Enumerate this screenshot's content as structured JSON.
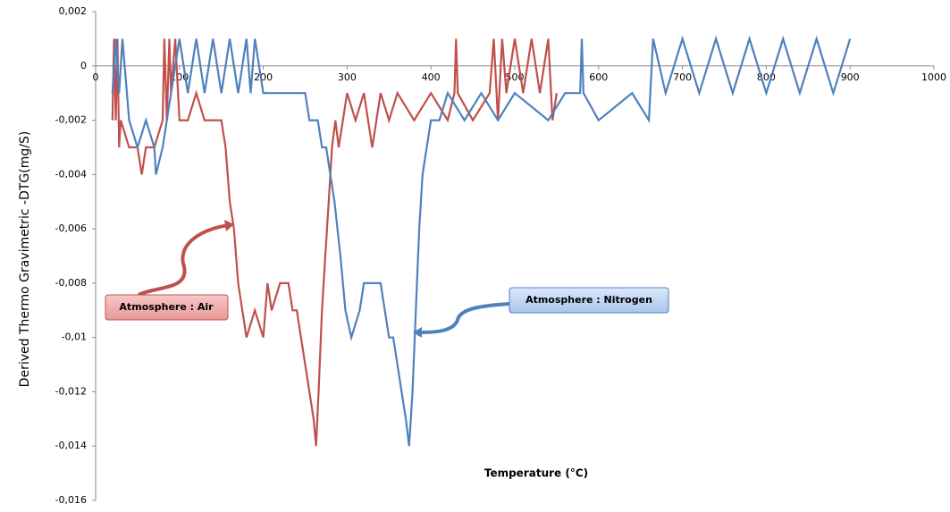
{
  "chart_data": {
    "type": "line",
    "y_label": "Derived Thermo Gravimetric -DTG(mg/S)",
    "x_label": "Temperature  (°C)",
    "xlim": [
      0,
      1000
    ],
    "xticks": [
      0,
      100,
      200,
      300,
      400,
      500,
      600,
      700,
      800,
      900,
      1000
    ],
    "ylim": [
      -0.016,
      0.002
    ],
    "yticks": [
      {
        "value": 0.002,
        "label": "0,002"
      },
      0,
      {
        "value": -0.002,
        "label": "-0,002"
      },
      {
        "value": -0.004,
        "label": "-0,004"
      },
      {
        "value": -0.006,
        "label": "-0,006"
      },
      {
        "value": -0.008,
        "label": "-0,008"
      },
      {
        "value": -0.01,
        "label": "-0,01"
      },
      {
        "value": -0.012,
        "label": "-0,012"
      },
      {
        "value": -0.014,
        "label": "-0,014"
      },
      {
        "value": -0.016,
        "label": "-0,016"
      }
    ],
    "series": [
      {
        "name": "Atmosphere : Air",
        "color": "#c0504d",
        "x": [
          20,
          22,
          24,
          26,
          28,
          30,
          40,
          50,
          55,
          60,
          70,
          80,
          82,
          85,
          88,
          90,
          95,
          100,
          110,
          120,
          130,
          140,
          150,
          155,
          160,
          165,
          170,
          180,
          190,
          200,
          205,
          210,
          220,
          230,
          235,
          240,
          245,
          250,
          255,
          260,
          263,
          266,
          270,
          274,
          278,
          282,
          286,
          290,
          300,
          310,
          320,
          330,
          340,
          350,
          360,
          380,
          400,
          420,
          428,
          430,
          432,
          450,
          470,
          475,
          480,
          485,
          490,
          500,
          510,
          520,
          530,
          540,
          545,
          550
        ],
        "values": [
          -0.002,
          0.001,
          -0.002,
          0.001,
          -0.003,
          -0.002,
          -0.003,
          -0.003,
          -0.004,
          -0.003,
          -0.003,
          -0.002,
          0.001,
          -0.002,
          0.001,
          -0.001,
          0.001,
          -0.002,
          -0.002,
          -0.001,
          -0.002,
          -0.002,
          -0.002,
          -0.003,
          -0.005,
          -0.006,
          -0.008,
          -0.01,
          -0.009,
          -0.01,
          -0.008,
          -0.009,
          -0.008,
          -0.008,
          -0.009,
          -0.009,
          -0.01,
          -0.011,
          -0.012,
          -0.013,
          -0.014,
          -0.012,
          -0.009,
          -0.007,
          -0.005,
          -0.003,
          -0.002,
          -0.003,
          -0.001,
          -0.002,
          -0.001,
          -0.003,
          -0.001,
          -0.002,
          -0.001,
          -0.002,
          -0.001,
          -0.002,
          -0.001,
          0.001,
          -0.001,
          -0.002,
          -0.001,
          0.001,
          -0.002,
          0.001,
          -0.001,
          0.001,
          -0.001,
          0.001,
          -0.001,
          0.001,
          -0.002,
          -0.001
        ]
      },
      {
        "name": "Atmosphere : Nitrogen",
        "color": "#4f81bd",
        "x": [
          20,
          24,
          28,
          32,
          40,
          50,
          60,
          70,
          72,
          80,
          90,
          100,
          110,
          120,
          130,
          140,
          150,
          160,
          170,
          180,
          185,
          190,
          200,
          220,
          240,
          250,
          255,
          265,
          270,
          275,
          280,
          285,
          292,
          298,
          305,
          315,
          320,
          330,
          340,
          345,
          350,
          355,
          360,
          365,
          370,
          374,
          378,
          382,
          386,
          390,
          395,
          400,
          410,
          420,
          440,
          460,
          480,
          500,
          540,
          560,
          578,
          580,
          582,
          600,
          640,
          660,
          665,
          680,
          700,
          720,
          740,
          760,
          780,
          800,
          820,
          840,
          860,
          880,
          900
        ],
        "values": [
          -0.001,
          0.001,
          -0.001,
          0.001,
          -0.002,
          -0.003,
          -0.002,
          -0.003,
          -0.004,
          -0.003,
          -0.001,
          0.001,
          -0.001,
          0.001,
          -0.001,
          0.001,
          -0.001,
          0.001,
          -0.001,
          0.001,
          -0.001,
          0.001,
          -0.001,
          -0.001,
          -0.001,
          -0.001,
          -0.002,
          -0.002,
          -0.003,
          -0.003,
          -0.004,
          -0.005,
          -0.007,
          -0.009,
          -0.01,
          -0.009,
          -0.008,
          -0.008,
          -0.008,
          -0.009,
          -0.01,
          -0.01,
          -0.011,
          -0.012,
          -0.013,
          -0.014,
          -0.012,
          -0.009,
          -0.006,
          -0.004,
          -0.003,
          -0.002,
          -0.002,
          -0.001,
          -0.002,
          -0.001,
          -0.002,
          -0.001,
          -0.002,
          -0.001,
          -0.001,
          0.001,
          -0.001,
          -0.002,
          -0.001,
          -0.002,
          0.001,
          -0.001,
          0.001,
          -0.001,
          0.001,
          -0.001,
          0.001,
          -0.001,
          0.001,
          -0.001,
          0.001,
          -0.001,
          0.001
        ]
      }
    ]
  }
}
